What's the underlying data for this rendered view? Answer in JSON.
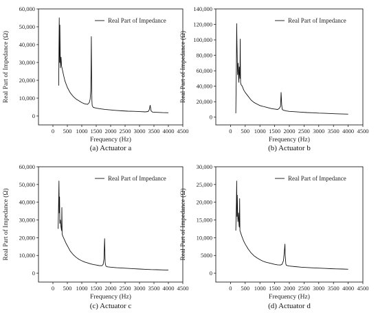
{
  "chart_data": [
    {
      "type": "line",
      "caption": "(a) Actuator a",
      "xlabel": "Frequency (Hz)",
      "ylabel": "Real Part of Impedance (Ω)",
      "xlim": [
        -500,
        4500
      ],
      "ylim": [
        -5000,
        60000
      ],
      "xticks": [
        0,
        500,
        1000,
        1500,
        2000,
        2500,
        3000,
        3500,
        4000,
        4500
      ],
      "xtick_labels": [
        "0",
        "500",
        "1000",
        "1500",
        "2000",
        "2500",
        "3000",
        "3500",
        "4000",
        "4500"
      ],
      "yticks": [
        0,
        10000,
        20000,
        30000,
        40000,
        50000,
        60000
      ],
      "ytick_labels": [
        "0",
        "10,000",
        "20,000",
        "30,000",
        "40,000",
        "50,000",
        "60,000"
      ],
      "legend": "top-right",
      "series": [
        {
          "name": "Real Part of Impedance",
          "x": [
            200,
            210,
            220,
            230,
            240,
            260,
            280,
            300,
            340,
            380,
            420,
            500,
            600,
            700,
            800,
            900,
            1000,
            1100,
            1200,
            1260,
            1290,
            1310,
            1320,
            1330,
            1340,
            1350,
            1360,
            1380,
            1400,
            1450,
            1500,
            1600,
            1800,
            2000,
            2200,
            2400,
            2600,
            2800,
            3000,
            3200,
            3300,
            3340,
            3370,
            3400,
            3450,
            3600,
            3800,
            4000
          ],
          "y": [
            17000,
            38000,
            55000,
            30000,
            51000,
            27000,
            33000,
            28000,
            25000,
            22000,
            19500,
            16000,
            13000,
            11000,
            9500,
            8500,
            7500,
            6800,
            6500,
            7500,
            9500,
            14000,
            22000,
            44500,
            20000,
            9000,
            6000,
            5200,
            4800,
            4600,
            4400,
            4100,
            3700,
            3400,
            3100,
            2900,
            2700,
            2600,
            2450,
            2300,
            2500,
            3600,
            6000,
            2900,
            2200,
            2050,
            1900,
            1800
          ]
        }
      ]
    },
    {
      "type": "line",
      "caption": "(b) Actuator b",
      "xlabel": "Frequency (Hz)",
      "ylabel": "Real Part of Impedance (Ω)",
      "xlim": [
        -500,
        4500
      ],
      "ylim": [
        -10000,
        140000
      ],
      "xticks": [
        0,
        500,
        1000,
        1500,
        2000,
        2500,
        3000,
        3500,
        4000,
        4500
      ],
      "xtick_labels": [
        "0",
        "500",
        "1000",
        "1500",
        "2000",
        "2500",
        "3000",
        "3500",
        "4000",
        "4500"
      ],
      "yticks": [
        0,
        20000,
        40000,
        60000,
        80000,
        100000,
        120000,
        140000
      ],
      "ytick_labels": [
        "0",
        "20,000",
        "40,000",
        "60,000",
        "80,000",
        "100,000",
        "120,000",
        "140,000"
      ],
      "legend": "top-right",
      "series": [
        {
          "name": "Real Part of Impedance",
          "x": [
            180,
            200,
            210,
            220,
            240,
            260,
            280,
            300,
            320,
            330,
            340,
            360,
            400,
            450,
            500,
            600,
            700,
            800,
            900,
            1000,
            1100,
            1200,
            1300,
            1400,
            1500,
            1600,
            1650,
            1700,
            1720,
            1740,
            1760,
            1800,
            1900,
            2000,
            2200,
            2400,
            2600,
            2800,
            3000,
            3200,
            3400,
            3600,
            3800,
            4000
          ],
          "y": [
            5000,
            70000,
            121000,
            95000,
            55000,
            70000,
            45000,
            65000,
            50000,
            101000,
            45000,
            42000,
            40000,
            35000,
            32000,
            27000,
            22000,
            19000,
            17000,
            15000,
            14000,
            13000,
            12000,
            11000,
            10500,
            10000,
            11000,
            14000,
            32000,
            16000,
            10000,
            9000,
            8000,
            7500,
            7000,
            6500,
            6000,
            5700,
            5300,
            5000,
            4700,
            4400,
            4100,
            3900
          ]
        }
      ]
    },
    {
      "type": "line",
      "caption": "(c) Actuator c",
      "xlabel": "Frequency (Hz)",
      "ylabel": "Real Part of Impedance (Ω)",
      "xlim": [
        -500,
        4500
      ],
      "ylim": [
        -5000,
        60000
      ],
      "xticks": [
        0,
        500,
        1000,
        1500,
        2000,
        2500,
        3000,
        3500,
        4000,
        4500
      ],
      "xtick_labels": [
        "0",
        "500",
        "1000",
        "1500",
        "2000",
        "2500",
        "3000",
        "3500",
        "4000",
        "4500"
      ],
      "yticks": [
        0,
        10000,
        20000,
        30000,
        40000,
        50000,
        60000
      ],
      "ytick_labels": [
        "0",
        "10,000",
        "20,000",
        "30,000",
        "40,000",
        "50,000",
        "60,000"
      ],
      "legend": "top-right",
      "series": [
        {
          "name": "Real Part of Impedance",
          "x": [
            180,
            200,
            210,
            220,
            230,
            240,
            260,
            280,
            300,
            310,
            320,
            340,
            380,
            450,
            500,
            600,
            700,
            800,
            900,
            1000,
            1100,
            1200,
            1300,
            1400,
            1500,
            1600,
            1700,
            1740,
            1770,
            1790,
            1800,
            1810,
            1830,
            1860,
            1900,
            2000,
            2200,
            2400,
            2600,
            2800,
            3000,
            3200,
            3400,
            3600,
            3800,
            4000
          ],
          "y": [
            25000,
            42000,
            52000,
            34000,
            43000,
            28000,
            30000,
            26000,
            24000,
            37000,
            22000,
            21000,
            19500,
            17000,
            15500,
            12500,
            10500,
            9000,
            7800,
            7000,
            6300,
            5800,
            5300,
            4900,
            4600,
            4300,
            4200,
            5000,
            8000,
            19500,
            13000,
            6000,
            4200,
            3700,
            3600,
            3400,
            3100,
            2900,
            2700,
            2500,
            2350,
            2200,
            2050,
            1950,
            1850,
            1750
          ]
        }
      ]
    },
    {
      "type": "line",
      "caption": "(d) Actuator d",
      "xlabel": "Frequency (Hz)",
      "ylabel": "Real Part of Impedance (Ω)",
      "xlim": [
        -500,
        4500
      ],
      "ylim": [
        -2500,
        30000
      ],
      "xticks": [
        0,
        500,
        1000,
        1500,
        2000,
        2500,
        3000,
        3500,
        4000,
        4500
      ],
      "xtick_labels": [
        "0",
        "500",
        "1000",
        "1500",
        "2000",
        "2500",
        "3000",
        "3500",
        "4000",
        "4500"
      ],
      "yticks": [
        0,
        5000,
        10000,
        15000,
        20000,
        25000,
        30000
      ],
      "ytick_labels": [
        "0",
        "5000",
        "10,000",
        "15,000",
        "20,000",
        "25,000",
        "30,000"
      ],
      "legend": "top-right",
      "series": [
        {
          "name": "Real Part of Impedance",
          "x": [
            180,
            200,
            210,
            220,
            230,
            250,
            270,
            290,
            300,
            310,
            320,
            340,
            380,
            450,
            500,
            600,
            700,
            800,
            900,
            1000,
            1100,
            1200,
            1300,
            1400,
            1500,
            1600,
            1700,
            1750,
            1800,
            1830,
            1850,
            1860,
            1880,
            1900,
            1950,
            2000,
            2200,
            2400,
            2600,
            2800,
            3000,
            3200,
            3400,
            3600,
            3800,
            4000
          ],
          "y": [
            12000,
            20000,
            26000,
            16000,
            22000,
            14500,
            17000,
            13500,
            13000,
            21000,
            12000,
            11500,
            10500,
            9000,
            8200,
            6800,
            5700,
            4900,
            4300,
            3800,
            3400,
            3100,
            2900,
            2700,
            2500,
            2350,
            2300,
            2500,
            3500,
            6000,
            8200,
            5000,
            2600,
            2200,
            2100,
            2000,
            1850,
            1700,
            1600,
            1500,
            1420,
            1350,
            1280,
            1220,
            1170,
            1120
          ]
        }
      ]
    }
  ]
}
